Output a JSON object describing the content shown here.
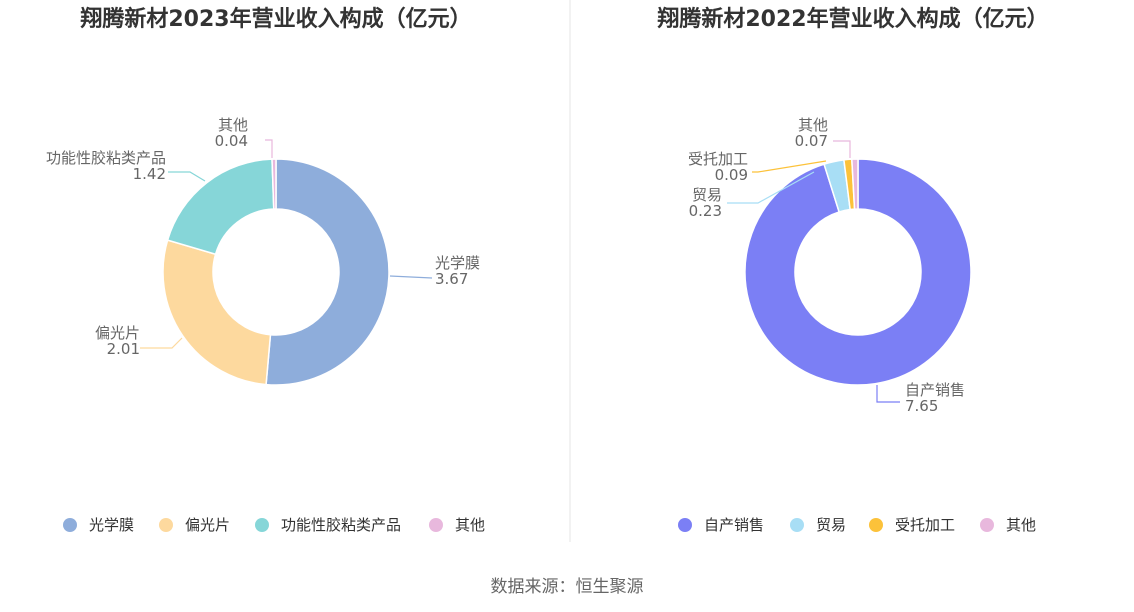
{
  "colors": {
    "divider": "#e6e6e6"
  },
  "source": "数据来源：恒生聚源",
  "chart_data": [
    {
      "type": "pie",
      "variant": "donut",
      "title": "翔腾新材2023年营业收入构成（亿元）",
      "categories": [
        "光学膜",
        "偏光片",
        "功能性胶粘类产品",
        "其他"
      ],
      "values": [
        3.67,
        2.01,
        1.42,
        0.04
      ],
      "value_labels": [
        "3.67",
        "2.01",
        "1.42",
        "0.04"
      ],
      "colors": [
        "#8eaddb",
        "#fdd99e",
        "#86d6d8",
        "#e8b8dd"
      ],
      "legend": {
        "position": "bottom"
      }
    },
    {
      "type": "pie",
      "variant": "donut",
      "title": "翔腾新材2022年营业收入构成（亿元）",
      "categories": [
        "自产销售",
        "贸易",
        "受托加工",
        "其他"
      ],
      "values": [
        7.65,
        0.23,
        0.09,
        0.07
      ],
      "value_labels": [
        "7.65",
        "0.23",
        "0.09",
        "0.07"
      ],
      "colors": [
        "#7b7ff5",
        "#a8def5",
        "#fcc23a",
        "#e8b8dd"
      ],
      "legend": {
        "position": "bottom"
      }
    }
  ]
}
